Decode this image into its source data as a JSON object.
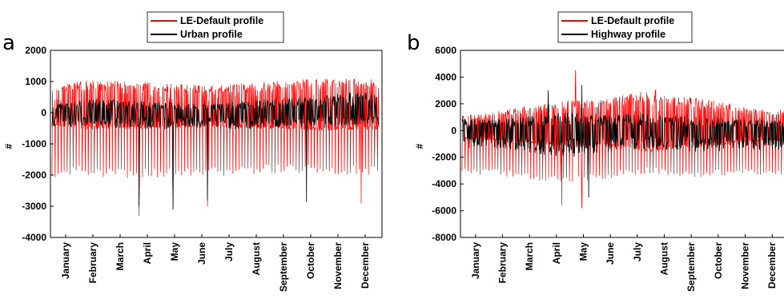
{
  "chart_data": [
    {
      "type": "line",
      "panel_label": "a",
      "ylabel": "#",
      "ylim": [
        -4000,
        2000
      ],
      "yticks": [
        -4000,
        -3000,
        -2000,
        -1000,
        0,
        1000,
        2000
      ],
      "ytick_labels": [
        "-4000",
        "-3000",
        "-2000",
        "-1000",
        "0",
        "1000",
        "2000"
      ],
      "x_categories": [
        "January",
        "February",
        "March",
        "April",
        "May",
        "June",
        "July",
        "August",
        "September",
        "October",
        "November",
        "December"
      ],
      "grid": false,
      "legend_position": "top-center",
      "series": [
        {
          "name": "LE-Default profile",
          "color": "#ff0000",
          "approx_envelope": {
            "upper": [
              1000,
              1350,
              1300,
              1300,
              1200,
              1150,
              1150,
              1200,
              1300,
              1350,
              1450,
              1400
            ],
            "lower": [
              -2100,
              -2000,
              -2050,
              -2100,
              -2100,
              -2100,
              -2050,
              -2000,
              -1950,
              -1950,
              -1950,
              -2000
            ]
          },
          "spikes": [
            {
              "month": "April",
              "value": -3300
            },
            {
              "month": "May",
              "value": -3100
            },
            {
              "month": "June",
              "value": -3000
            },
            {
              "month": "December",
              "value": -2900
            }
          ]
        },
        {
          "name": "Urban profile",
          "color": "#000000",
          "approx_envelope": {
            "upper": [
              300,
              400,
              450,
              400,
              350,
              300,
              300,
              350,
              450,
              500,
              600,
              650
            ],
            "lower": [
              -500,
              -400,
              -500,
              -500,
              -550,
              -500,
              -500,
              -550,
              -500,
              -450,
              -400,
              -400
            ]
          },
          "spikes": [
            {
              "month": "April",
              "value": -3000
            },
            {
              "month": "May",
              "value": -3100
            },
            {
              "month": "June",
              "value": -2800
            },
            {
              "month": "October",
              "value": -2850
            }
          ]
        }
      ]
    },
    {
      "type": "line",
      "panel_label": "b",
      "ylabel": "#",
      "ylim": [
        -8000,
        6000
      ],
      "yticks": [
        -8000,
        -6000,
        -4000,
        -2000,
        0,
        2000,
        4000,
        6000
      ],
      "ytick_labels": [
        "-8000",
        "-6000",
        "-4000",
        "-2000",
        "0",
        "2000",
        "4000",
        "6000"
      ],
      "x_categories": [
        "January",
        "February",
        "March",
        "April",
        "May",
        "June",
        "July",
        "August",
        "September",
        "October",
        "November",
        "December"
      ],
      "grid": false,
      "legend_position": "top-center",
      "series": [
        {
          "name": "LE-Default profile",
          "color": "#ff0000",
          "approx_envelope": {
            "upper": [
              1500,
              1700,
              2100,
              2600,
              3000,
              2900,
              3400,
              4000,
              3300,
              3100,
              2500,
              2000
            ],
            "lower": [
              -3300,
              -3300,
              -3500,
              -3800,
              -3900,
              -3700,
              -3400,
              -3200,
              -3400,
              -3500,
              -3300,
              -3400
            ]
          },
          "spikes": [
            {
              "month": "May",
              "value": 4500
            },
            {
              "month": "May",
              "value": -5800
            },
            {
              "month": "April",
              "value": -5600
            }
          ]
        },
        {
          "name": "Highway profile",
          "color": "#000000",
          "approx_envelope": {
            "upper": [
              900,
              800,
              1000,
              1200,
              1400,
              1100,
              1300,
              1400,
              1100,
              1000,
              900,
              800
            ],
            "lower": [
              -1300,
              -1300,
              -1500,
              -1800,
              -2000,
              -1700,
              -1500,
              -1400,
              -1500,
              -1600,
              -1500,
              -1500
            ]
          },
          "spikes": [
            {
              "month": "April",
              "value": 3000
            },
            {
              "month": "May",
              "value": 3400
            },
            {
              "month": "May",
              "value": -5000
            }
          ]
        }
      ]
    }
  ]
}
